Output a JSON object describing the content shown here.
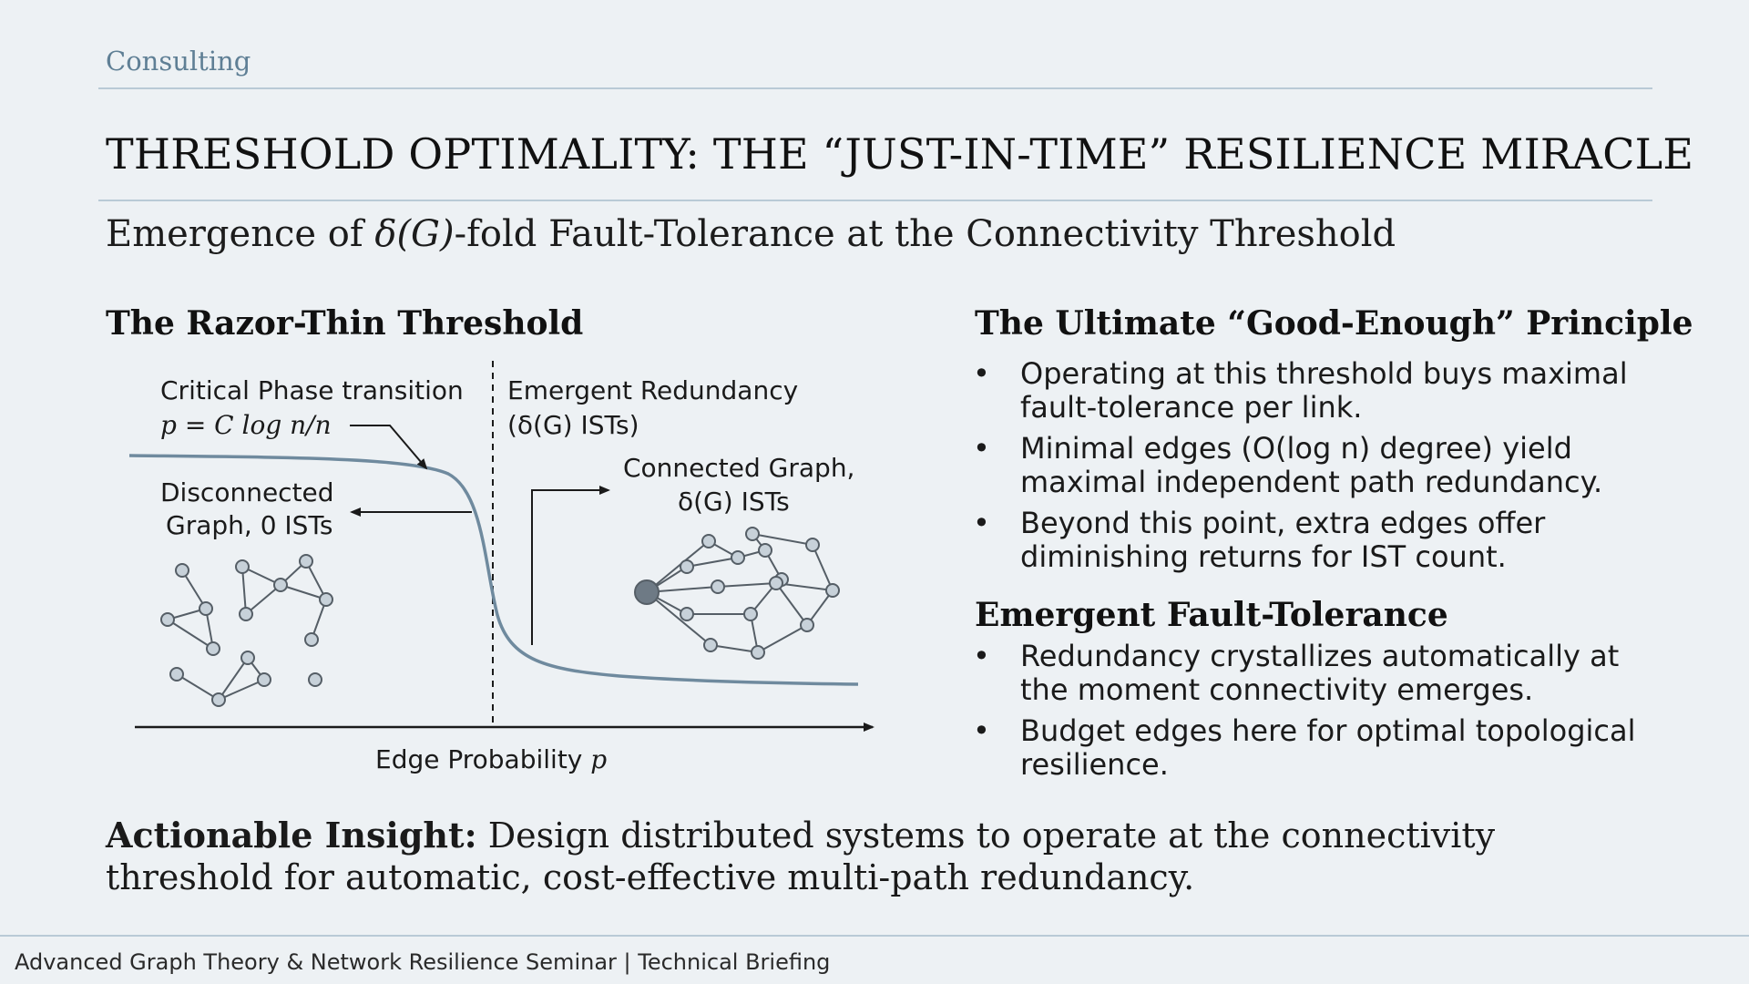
{
  "header": {
    "category": "Consulting",
    "title": "THRESHOLD OPTIMALITY: THE “JUST-IN-TIME” RESILIENCE MIRACLE",
    "subtitle_prefix": "Emergence of ",
    "subtitle_math": "δ(G)",
    "subtitle_suffix": "-fold Fault-Tolerance at the Connectivity Threshold"
  },
  "left_section": {
    "heading": "The Razor-Thin Threshold",
    "diagram": {
      "critical_label": "Critical Phase transition",
      "critical_formula": "p = C log n/n",
      "emergent_label": "Emergent Redundancy",
      "emergent_sub": "(δ(G) ISTs)",
      "disconnected_line1": "Disconnected",
      "disconnected_line2": "Graph, 0 ISTs",
      "connected_line1": "Connected Graph,",
      "connected_line2": "δ(G) ISTs",
      "x_axis_label": "Edge Probability ",
      "x_axis_var": "p"
    }
  },
  "right_section": {
    "heading1": "The Ultimate “Good-Enough” Principle",
    "bullets1": [
      "Operating at this threshold buys maximal fault-tolerance per link.",
      "Minimal edges (O(log n) degree) yield maximal independent path redundancy.",
      "Beyond this point, extra edges offer diminishing returns for IST count."
    ],
    "heading2": "Emergent Fault-Tolerance",
    "bullets2": [
      "Redundancy crystallizes automatically at the moment connectivity emerges.",
      "Budget edges here for optimal topological resilience."
    ]
  },
  "insight": {
    "label": "Actionable Insight:",
    "text": " Design distributed systems to operate at the connectivity threshold for automatic, cost-effective multi-path redundancy."
  },
  "footer": {
    "text": "Advanced Graph Theory & Network Resilience Seminar | Technical Briefing"
  },
  "colors": {
    "background": "#edf1f4",
    "curve": "#6f8a9e",
    "node_fill": "#c7d1d9",
    "node_stroke": "#555e66",
    "hub_fill": "#6e7a85",
    "rule": "#b9cad6",
    "category": "#5f7f95"
  }
}
